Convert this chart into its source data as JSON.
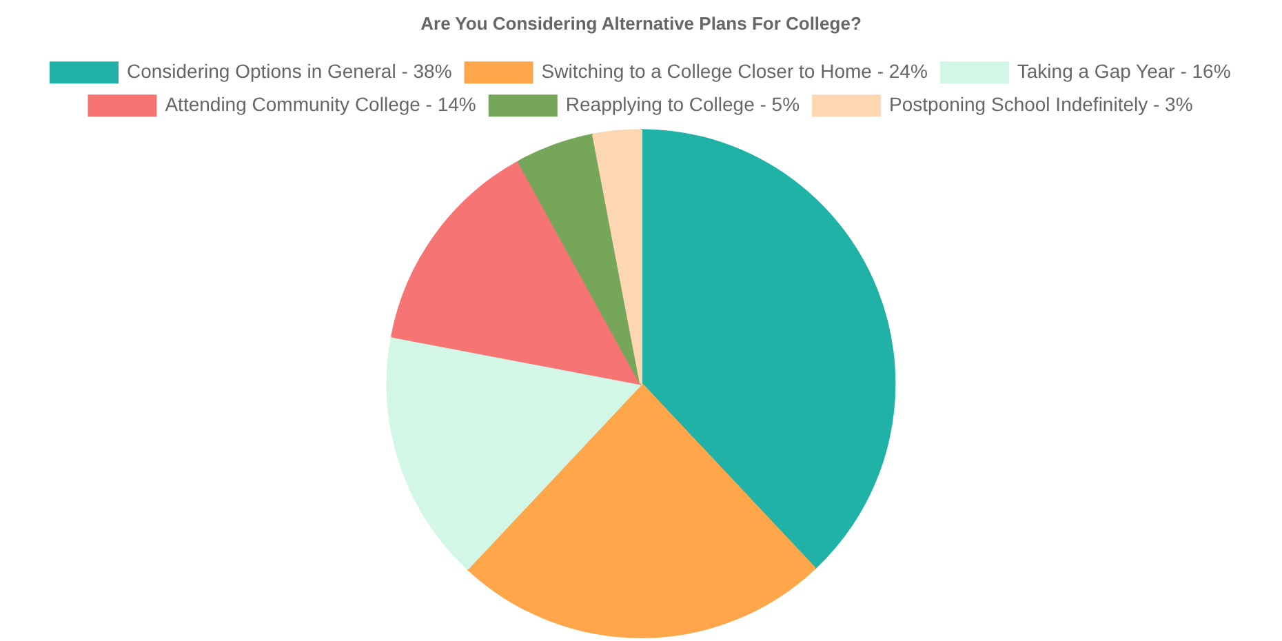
{
  "chart_data": {
    "type": "pie",
    "title": "Are You Considering Alternative Plans For College?",
    "categories": [
      "Considering Options in General - 38%",
      "Switching to a College Closer to Home - 24%",
      "Taking a Gap Year - 16%",
      "Attending Community College - 14%",
      "Reapplying to College - 5%",
      "Postponing School Indefinitely - 3%"
    ],
    "values": [
      38,
      24,
      16,
      14,
      5,
      3
    ],
    "colors": [
      "#20b2a6",
      "#ffa64a",
      "#d2f7e6",
      "#f77474",
      "#76a659",
      "#fdd6b2"
    ],
    "legend": "top"
  }
}
